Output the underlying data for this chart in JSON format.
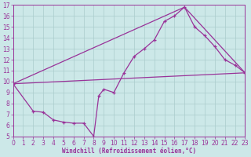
{
  "xlabel": "Windchill (Refroidissement éolien,°C)",
  "bg_color": "#cce8e8",
  "grid_color": "#aacccc",
  "line_color": "#993399",
  "spine_color": "#993399",
  "xlim": [
    0,
    23
  ],
  "ylim": [
    5,
    17
  ],
  "xticks": [
    0,
    1,
    2,
    3,
    4,
    5,
    6,
    7,
    8,
    9,
    10,
    11,
    12,
    13,
    14,
    15,
    16,
    17,
    18,
    19,
    20,
    21,
    22,
    23
  ],
  "yticks": [
    5,
    6,
    7,
    8,
    9,
    10,
    11,
    12,
    13,
    14,
    15,
    16,
    17
  ],
  "line1_x": [
    0,
    2,
    3,
    4,
    5,
    6,
    7,
    8,
    8.5,
    9,
    10,
    11,
    12,
    13,
    14,
    15,
    16,
    17,
    18,
    19,
    20,
    21,
    22,
    23
  ],
  "line1_y": [
    9.8,
    7.3,
    7.2,
    6.5,
    6.3,
    6.2,
    6.2,
    5.0,
    8.7,
    9.3,
    9.0,
    10.8,
    12.3,
    13.0,
    13.8,
    15.5,
    16.0,
    16.8,
    15.0,
    14.2,
    13.2,
    12.0,
    11.5,
    10.8
  ],
  "line2_x": [
    0,
    23
  ],
  "line2_y": [
    9.8,
    10.8
  ],
  "line3_x": [
    0,
    17,
    23
  ],
  "line3_y": [
    9.8,
    16.8,
    10.8
  ],
  "tick_fontsize": 5.5,
  "xlabel_fontsize": 5.5
}
